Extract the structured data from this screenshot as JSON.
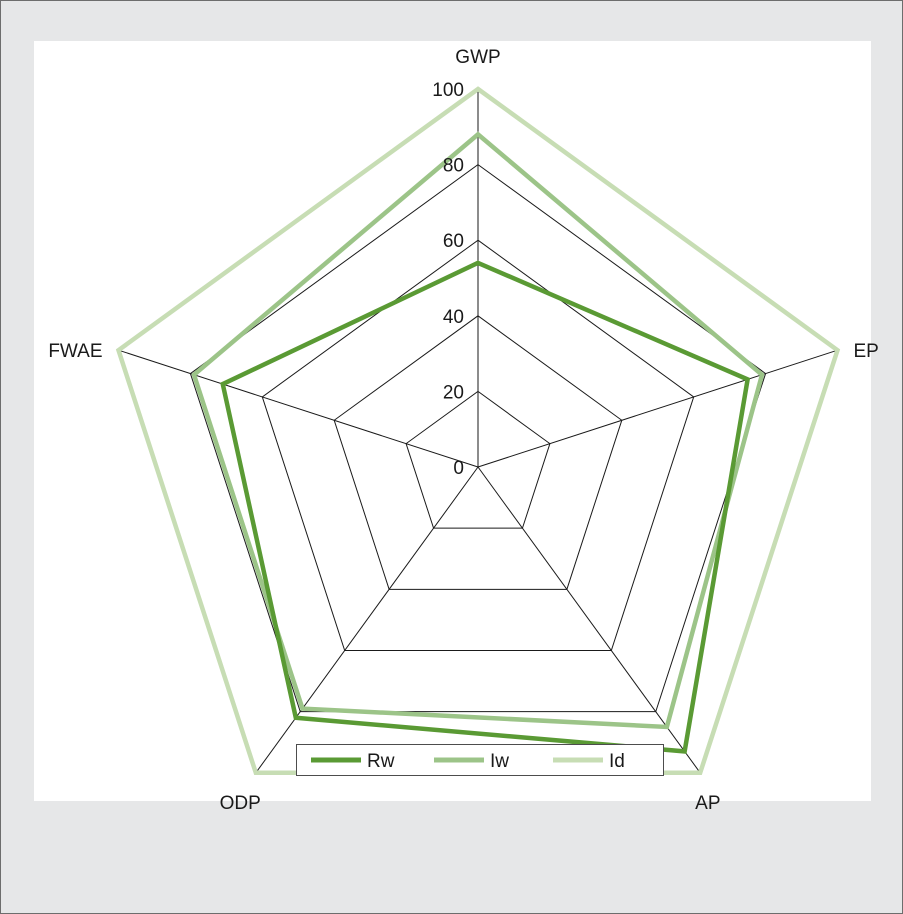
{
  "chart_data": {
    "type": "radar",
    "axes": [
      "GWP",
      "EP",
      "AP",
      "ODP",
      "FWAE"
    ],
    "rlim": [
      0,
      100
    ],
    "ticks": [
      "0",
      "20",
      "40",
      "60",
      "80",
      "100"
    ],
    "tick_values": [
      0,
      20,
      40,
      60,
      80,
      100
    ],
    "grid": true,
    "legend_position": "bottom",
    "series": [
      {
        "name": "Rw",
        "values": [
          54,
          75,
          93,
          82,
          71
        ],
        "color": "#5a9a34",
        "width": 4.5
      },
      {
        "name": "Iw",
        "values": [
          88,
          79,
          85,
          79,
          79
        ],
        "color": "#9cc488",
        "width": 4.5
      },
      {
        "name": "Id",
        "values": [
          100,
          100,
          100,
          100,
          100
        ],
        "color": "#c7ddb4",
        "width": 4.5
      }
    ]
  }
}
